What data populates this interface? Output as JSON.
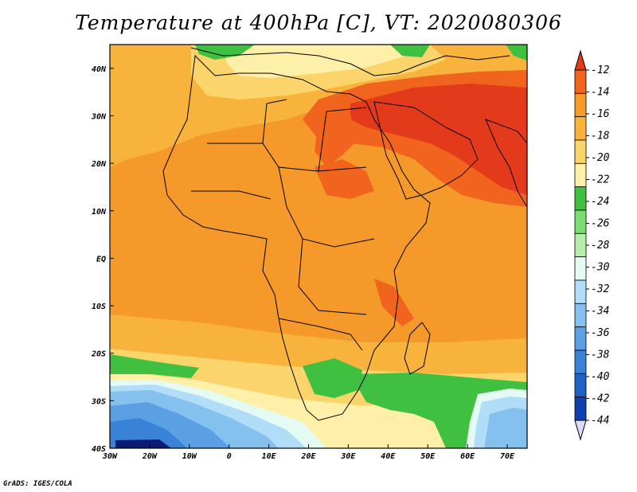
{
  "title": "Temperature at 400hPa [C], VT: 2020080306",
  "credit": "GrADS: IGES/COLA",
  "map": {
    "lon_range": [
      -30,
      75
    ],
    "lat_range": [
      -40,
      45
    ],
    "lon_ticks": [
      {
        "value": -30,
        "label": "30W"
      },
      {
        "value": -20,
        "label": "20W"
      },
      {
        "value": -10,
        "label": "10W"
      },
      {
        "value": 0,
        "label": "0"
      },
      {
        "value": 10,
        "label": "10E"
      },
      {
        "value": 20,
        "label": "20E"
      },
      {
        "value": 30,
        "label": "30E"
      },
      {
        "value": 40,
        "label": "40E"
      },
      {
        "value": 50,
        "label": "50E"
      },
      {
        "value": 60,
        "label": "60E"
      },
      {
        "value": 70,
        "label": "70E"
      }
    ],
    "lat_ticks": [
      {
        "value": 40,
        "label": "40N"
      },
      {
        "value": 30,
        "label": "30N"
      },
      {
        "value": 20,
        "label": "20N"
      },
      {
        "value": 10,
        "label": "10N"
      },
      {
        "value": 0,
        "label": "EQ"
      },
      {
        "value": -10,
        "label": "10S"
      },
      {
        "value": -20,
        "label": "20S"
      },
      {
        "value": -30,
        "label": "30S"
      },
      {
        "value": -40,
        "label": "40S"
      }
    ]
  },
  "colorbar": {
    "levels": [
      "-12",
      "-14",
      "-16",
      "-18",
      "-20",
      "-22",
      "-24",
      "-26",
      "-28",
      "-30",
      "-32",
      "-34",
      "-36",
      "-38",
      "-40",
      "-42",
      "-44"
    ],
    "colors": [
      "#e23a1a",
      "#f0641e",
      "#f59a2a",
      "#f8b33c",
      "#fbd56c",
      "#fef0a8",
      "#40c040",
      "#7bdc72",
      "#b6edaa",
      "#e4fbf4",
      "#b2ddf8",
      "#84c1ef",
      "#5aa0e3",
      "#3a82d8",
      "#1e62c4",
      "#1040ae",
      "#0a1c72"
    ],
    "arrow_top_color": "#e23a1a",
    "arrow_bottom_color": "#dcdcfa"
  },
  "field_colors": {
    "background": "#f59a2a",
    "deep_orange": "#f0641e",
    "hot": "#e23a1a",
    "light_orange": "#f8b33c",
    "yellow": "#fbd56c",
    "pale": "#fef0a8",
    "green": "#40c040",
    "light_green": "#7bdc72",
    "pale_green": "#b6edaa",
    "cyan": "#e4fbf4",
    "light_blue": "#b2ddf8",
    "blue": "#84c1ef",
    "mid_blue": "#5aa0e3",
    "deep_blue": "#3a82d8",
    "navy": "#1040ae",
    "darkest": "#0a1c72"
  }
}
